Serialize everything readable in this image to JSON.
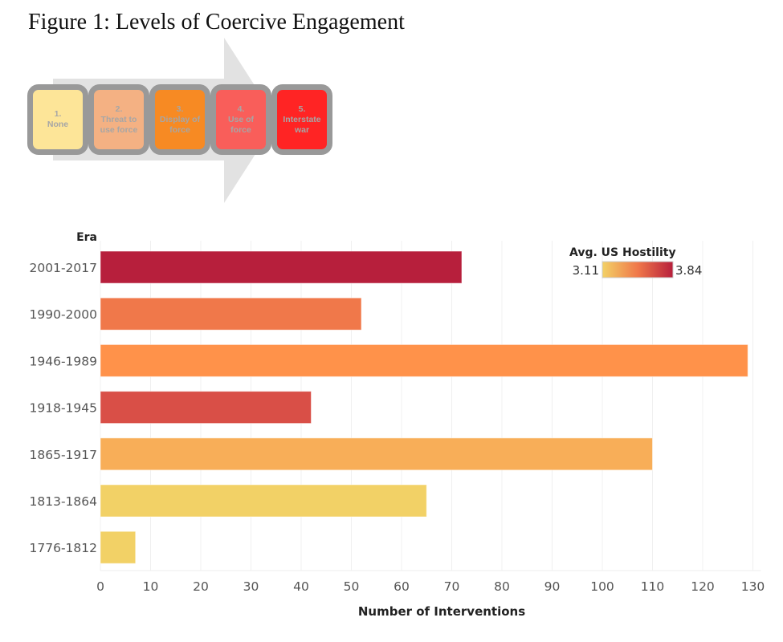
{
  "figure_title": "Figure 1: Levels of Coercive Engagement",
  "levels": [
    {
      "number": "1.",
      "lines": [
        "None"
      ],
      "color": "#FDE598"
    },
    {
      "number": "2.",
      "lines": [
        "Threat to",
        "use force"
      ],
      "color": "#F4B183"
    },
    {
      "number": "3.",
      "lines": [
        "Display of",
        "force"
      ],
      "color": "#F78A23"
    },
    {
      "number": "4.",
      "lines": [
        "Use of",
        "force"
      ],
      "color": "#F95E5A"
    },
    {
      "number": "5.",
      "lines": [
        "Interstate",
        "war"
      ],
      "color": "#FF2424"
    }
  ],
  "chart_data": {
    "type": "bar",
    "orientation": "horizontal",
    "title": "",
    "ylabel": "Era",
    "xlabel": "Number of Interventions",
    "categories": [
      "2001-2017",
      "1990-2000",
      "1946-1989",
      "1918-1945",
      "1865-1917",
      "1813-1864",
      "1776-1812"
    ],
    "values": [
      72,
      52,
      129,
      42,
      110,
      65,
      7
    ],
    "bar_colors": [
      "#B71F3C",
      "#F0784A",
      "#FF924A",
      "#D94F47",
      "#F8AE58",
      "#F2D166",
      "#F2D166"
    ],
    "xlim": [
      0,
      130
    ],
    "xticks": [
      0,
      10,
      20,
      30,
      40,
      50,
      60,
      70,
      80,
      90,
      100,
      110,
      120,
      130
    ],
    "grid": true,
    "legend": {
      "title": "Avg. US Hostility",
      "min_label": "3.11",
      "max_label": "3.84",
      "gradient": [
        "#F2D166",
        "#F0784A",
        "#B71F3C"
      ],
      "placement": "top-right"
    }
  }
}
